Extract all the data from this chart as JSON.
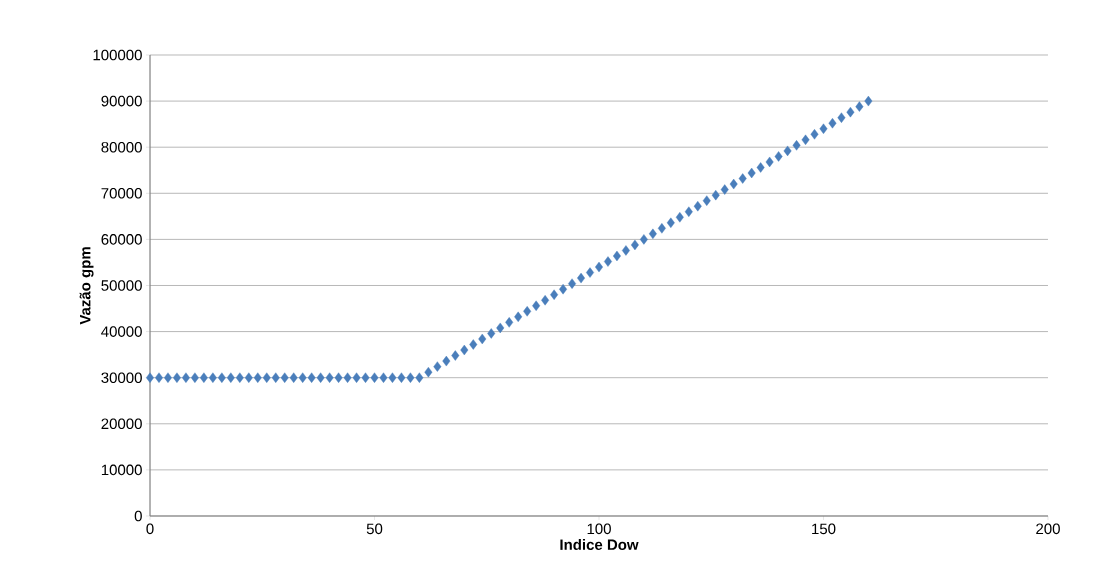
{
  "chart_data": {
    "type": "scatter",
    "xlabel": "Indice Dow",
    "ylabel": "Vazão gpm",
    "xlim": [
      0,
      200
    ],
    "xticks": [
      0,
      50,
      100,
      150,
      200
    ],
    "ylim": [
      0,
      100000
    ],
    "yticks": [
      0,
      10000,
      20000,
      30000,
      40000,
      50000,
      60000,
      70000,
      80000,
      90000,
      100000
    ],
    "grid": "y",
    "marker": "diamond",
    "series": [
      {
        "color": "#4a7ebb",
        "x": [
          0,
          2,
          4,
          6,
          8,
          10,
          12,
          14,
          16,
          18,
          20,
          22,
          24,
          26,
          28,
          30,
          32,
          34,
          36,
          38,
          40,
          42,
          44,
          46,
          48,
          50,
          52,
          54,
          56,
          58,
          60,
          62,
          64,
          66,
          68,
          70,
          72,
          74,
          76,
          78,
          80,
          82,
          84,
          86,
          88,
          90,
          92,
          94,
          96,
          98,
          100,
          102,
          104,
          106,
          108,
          110,
          112,
          114,
          116,
          118,
          120,
          122,
          124,
          126,
          128,
          130,
          132,
          134,
          136,
          138,
          140,
          142,
          144,
          146,
          148,
          150,
          152,
          154,
          156,
          158,
          160
        ],
        "values": [
          30000,
          30000,
          30000,
          30000,
          30000,
          30000,
          30000,
          30000,
          30000,
          30000,
          30000,
          30000,
          30000,
          30000,
          30000,
          30000,
          30000,
          30000,
          30000,
          30000,
          30000,
          30000,
          30000,
          30000,
          30000,
          30000,
          30000,
          30000,
          30000,
          30000,
          30000,
          31200,
          32400,
          33600,
          34800,
          36000,
          37200,
          38400,
          39600,
          40800,
          42000,
          43200,
          44400,
          45600,
          46800,
          48000,
          49200,
          50400,
          51600,
          52800,
          54000,
          55200,
          56400,
          57600,
          58800,
          60000,
          61200,
          62400,
          63600,
          64800,
          66000,
          67200,
          68400,
          69600,
          70800,
          72000,
          73200,
          74400,
          75600,
          76800,
          78000,
          79200,
          80400,
          81600,
          82800,
          84000,
          85200,
          86400,
          87600,
          88800,
          90000
        ]
      }
    ]
  }
}
